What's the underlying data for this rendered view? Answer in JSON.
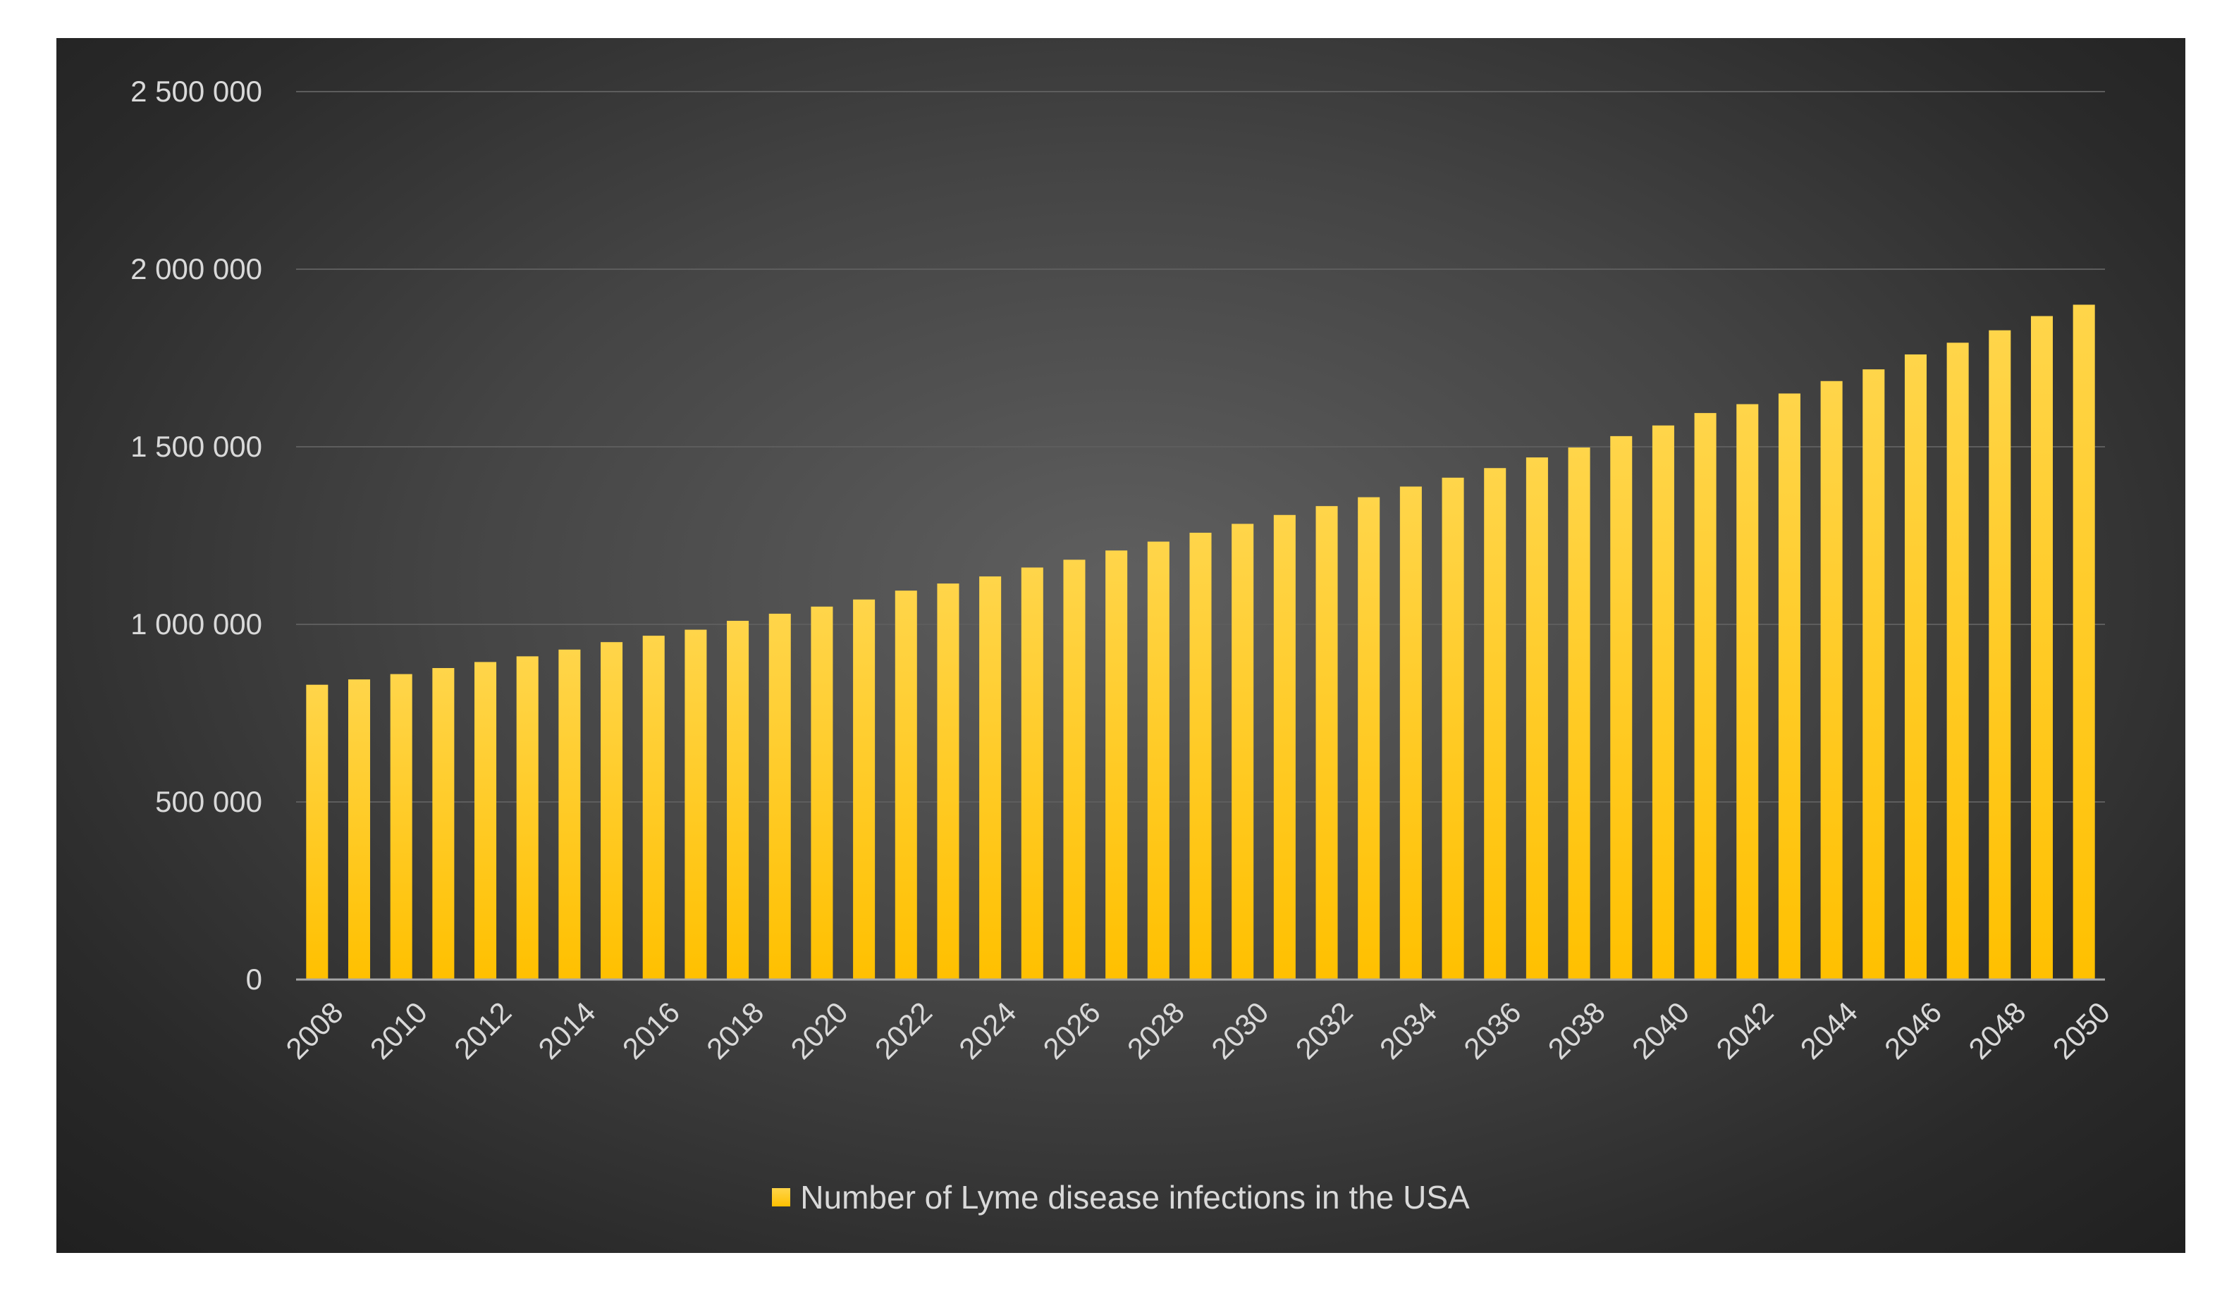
{
  "chart_data": {
    "type": "bar",
    "title": "",
    "xlabel": "",
    "ylabel": "",
    "ylim": [
      0,
      2500000
    ],
    "y_ticks": [
      0,
      500000,
      1000000,
      1500000,
      2000000,
      2500000
    ],
    "y_tick_labels": [
      "0",
      "500 000",
      "1 000 000",
      "1 500 000",
      "2 000 000",
      "2 500 000"
    ],
    "grid": true,
    "legend_position": "bottom",
    "categories": [
      "2008",
      "2009",
      "2010",
      "2011",
      "2012",
      "2013",
      "2014",
      "2015",
      "2016",
      "2017",
      "2018",
      "2019",
      "2020",
      "2021",
      "2022",
      "2023",
      "2024",
      "2025",
      "2026",
      "2027",
      "2028",
      "2029",
      "2030",
      "2031",
      "2032",
      "2033",
      "2034",
      "2035",
      "2036",
      "2037",
      "2038",
      "2039",
      "2040",
      "2041",
      "2042",
      "2043",
      "2044",
      "2045",
      "2046",
      "2047",
      "2048",
      "2049",
      "2050"
    ],
    "x_tick_labels": [
      "2008",
      "2010",
      "2012",
      "2014",
      "2016",
      "2018",
      "2020",
      "2022",
      "2024",
      "2026",
      "2028",
      "2030",
      "2032",
      "2034",
      "2036",
      "2038",
      "2040",
      "2042",
      "2044",
      "2046",
      "2048",
      "2050"
    ],
    "series": [
      {
        "name": "Number of Lyme disease infections in the USA",
        "color": "#ffc000",
        "values": [
          830000,
          845000,
          860000,
          877000,
          894000,
          910000,
          929000,
          950000,
          968000,
          985000,
          1010000,
          1030000,
          1050000,
          1070000,
          1095000,
          1115000,
          1135000,
          1160000,
          1182000,
          1208000,
          1233000,
          1258000,
          1283000,
          1308000,
          1333000,
          1358000,
          1388000,
          1413000,
          1440000,
          1470000,
          1498000,
          1530000,
          1560000,
          1595000,
          1620000,
          1650000,
          1685000,
          1718000,
          1760000,
          1793000,
          1828000,
          1868000,
          1900000
        ]
      }
    ]
  }
}
